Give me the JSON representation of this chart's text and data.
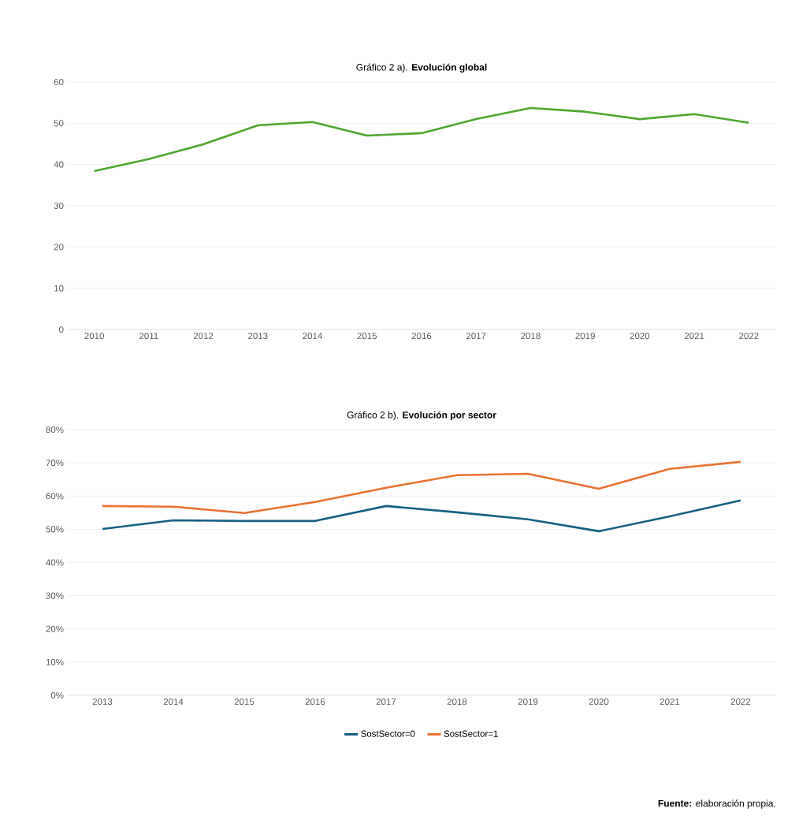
{
  "chart_data": [
    {
      "type": "line",
      "title": "Gráfico 2 a). **Evolución global**",
      "categories": [
        "2010",
        "2011",
        "2012",
        "2013",
        "2014",
        "2015",
        "2016",
        "2017",
        "2018",
        "2019",
        "2020",
        "2021",
        "2022"
      ],
      "series": [
        {
          "color": "#4ea72e",
          "values": [
            38.4,
            41.3,
            44.9,
            49.5,
            50.3,
            47.0,
            47.6,
            51.0,
            53.7,
            52.8,
            51.0,
            52.2,
            50.1
          ]
        }
      ],
      "ylim": [
        0,
        60
      ],
      "yticks": [
        0,
        10,
        20,
        30,
        40,
        50,
        60
      ],
      "grid": "y",
      "marker": "none",
      "line_style": "solid"
    },
    {
      "type": "line",
      "title": "Gráfico 2 b). **Evolución por sector**",
      "categories": [
        "2013",
        "2014",
        "2015",
        "2016",
        "2017",
        "2018",
        "2019",
        "2020",
        "2021",
        "2022"
      ],
      "series": [
        {
          "name": "SostSector=0",
          "color": "#156082",
          "values": [
            50.1,
            52.7,
            52.5,
            52.5,
            57.0,
            55.1,
            53.0,
            49.4,
            53.9,
            58.7
          ]
        },
        {
          "name": "SostSector=1",
          "color": "#e97132",
          "values": [
            57.0,
            56.8,
            54.9,
            58.2,
            62.5,
            66.3,
            66.7,
            62.2,
            68.2,
            70.3
          ]
        }
      ],
      "ylim": [
        0,
        80
      ],
      "yticks": [
        {
          "value": 0,
          "label": "0%"
        },
        {
          "value": 10,
          "label": "10%"
        },
        {
          "value": 20,
          "label": "20%"
        },
        {
          "value": 30,
          "label": "30%"
        },
        {
          "value": 40,
          "label": "40%"
        },
        {
          "value": 50,
          "label": "50%"
        },
        {
          "value": 60,
          "label": "60%"
        },
        {
          "value": 70,
          "label": "70%"
        },
        {
          "value": 80,
          "label": "80%"
        }
      ],
      "grid": "y",
      "legend": "bottom",
      "marker": "none",
      "line_style": "solid",
      "annotations": [
        "**Fuente:** elaboración propia."
      ]
    }
  ]
}
